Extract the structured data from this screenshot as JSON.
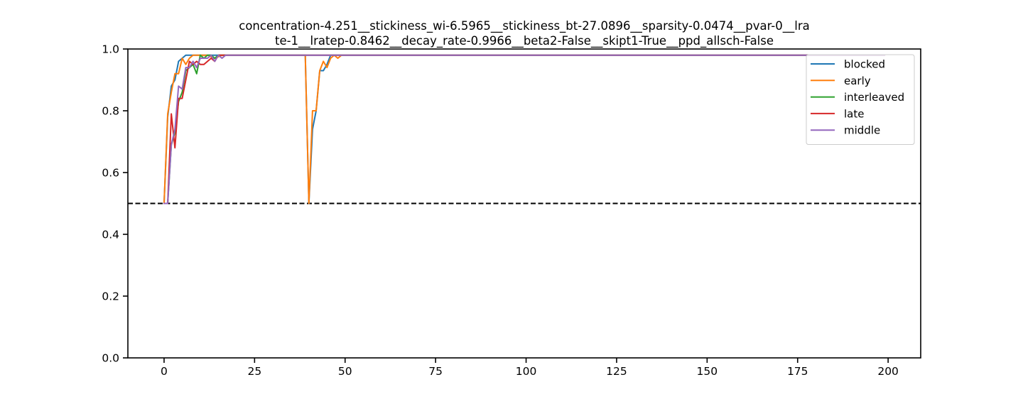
{
  "chart_data": {
    "type": "line",
    "title_lines": [
      "concentration-4.251__stickiness_wi-6.5965__stickiness_bt-27.0896__sparsity-0.0474__pvar-0__lra",
      "te-1__lratep-0.8462__decay_rate-0.9966__beta2-False__skipt1-True__ppd_allsch-False"
    ],
    "xlabel": "",
    "ylabel": "",
    "xlim": [
      -10,
      209
    ],
    "ylim": [
      0.0,
      1.0
    ],
    "xticks": [
      0,
      25,
      50,
      75,
      100,
      125,
      150,
      175,
      200
    ],
    "yticks": [
      0.0,
      0.2,
      0.4,
      0.6,
      0.8,
      1.0
    ],
    "xtick_labels": [
      "0",
      "25",
      "50",
      "75",
      "100",
      "125",
      "150",
      "175",
      "200"
    ],
    "ytick_labels": [
      "0.0",
      "0.2",
      "0.4",
      "0.6",
      "0.8",
      "1.0"
    ],
    "grid": false,
    "legend_position": "top-right",
    "hline": {
      "y": 0.5,
      "style": "dashed",
      "color": "#000000"
    },
    "series": [
      {
        "name": "blocked",
        "color": "#1f77b4",
        "points": [
          [
            0,
            0.5
          ],
          [
            1,
            0.78
          ],
          [
            2,
            0.88
          ],
          [
            3,
            0.9
          ],
          [
            4,
            0.96
          ],
          [
            5,
            0.97
          ],
          [
            6,
            0.98
          ],
          [
            7,
            0.98
          ],
          [
            8,
            0.98
          ],
          [
            9,
            0.98
          ],
          [
            10,
            0.98
          ],
          [
            15,
            0.98
          ],
          [
            20,
            0.98
          ],
          [
            30,
            0.98
          ],
          [
            39,
            0.98
          ],
          [
            40,
            0.5
          ],
          [
            41,
            0.74
          ],
          [
            42,
            0.8
          ],
          [
            43,
            0.93
          ],
          [
            44,
            0.93
          ],
          [
            45,
            0.95
          ],
          [
            46,
            0.98
          ],
          [
            47,
            0.98
          ],
          [
            50,
            0.98
          ],
          [
            100,
            0.98
          ],
          [
            150,
            0.98
          ],
          [
            199,
            0.98
          ]
        ]
      },
      {
        "name": "early",
        "color": "#ff7f0e",
        "points": [
          [
            0,
            0.5
          ],
          [
            1,
            0.79
          ],
          [
            2,
            0.86
          ],
          [
            3,
            0.92
          ],
          [
            4,
            0.92
          ],
          [
            5,
            0.97
          ],
          [
            6,
            0.95
          ],
          [
            7,
            0.97
          ],
          [
            8,
            0.98
          ],
          [
            9,
            0.98
          ],
          [
            10,
            0.98
          ],
          [
            12,
            0.98
          ],
          [
            14,
            0.97
          ],
          [
            16,
            0.98
          ],
          [
            20,
            0.98
          ],
          [
            30,
            0.98
          ],
          [
            39,
            0.98
          ],
          [
            40,
            0.5
          ],
          [
            41,
            0.8
          ],
          [
            42,
            0.8
          ],
          [
            43,
            0.93
          ],
          [
            44,
            0.96
          ],
          [
            45,
            0.94
          ],
          [
            46,
            0.97
          ],
          [
            47,
            0.98
          ],
          [
            48,
            0.97
          ],
          [
            49,
            0.98
          ],
          [
            50,
            0.98
          ],
          [
            100,
            0.98
          ],
          [
            150,
            0.98
          ],
          [
            199,
            0.98
          ]
        ]
      },
      {
        "name": "interleaved",
        "color": "#2ca02c",
        "points": [
          [
            0,
            0.5
          ],
          [
            1,
            0.5
          ],
          [
            2,
            0.69
          ],
          [
            3,
            0.73
          ],
          [
            4,
            0.83
          ],
          [
            5,
            0.86
          ],
          [
            6,
            0.93
          ],
          [
            7,
            0.94
          ],
          [
            8,
            0.95
          ],
          [
            9,
            0.92
          ],
          [
            10,
            0.98
          ],
          [
            11,
            0.97
          ],
          [
            12,
            0.98
          ],
          [
            13,
            0.98
          ],
          [
            14,
            0.97
          ],
          [
            15,
            0.98
          ],
          [
            16,
            0.98
          ],
          [
            17,
            0.98
          ],
          [
            20,
            0.98
          ],
          [
            50,
            0.98
          ],
          [
            100,
            0.98
          ],
          [
            150,
            0.98
          ],
          [
            199,
            0.98
          ]
        ]
      },
      {
        "name": "late",
        "color": "#d62728",
        "points": [
          [
            0,
            0.5
          ],
          [
            1,
            0.5
          ],
          [
            2,
            0.79
          ],
          [
            3,
            0.68
          ],
          [
            4,
            0.84
          ],
          [
            5,
            0.84
          ],
          [
            6,
            0.9
          ],
          [
            7,
            0.96
          ],
          [
            8,
            0.95
          ],
          [
            9,
            0.96
          ],
          [
            10,
            0.95
          ],
          [
            11,
            0.95
          ],
          [
            12,
            0.96
          ],
          [
            13,
            0.97
          ],
          [
            14,
            0.96
          ],
          [
            15,
            0.98
          ],
          [
            16,
            0.98
          ],
          [
            20,
            0.98
          ],
          [
            50,
            0.98
          ],
          [
            100,
            0.98
          ],
          [
            150,
            0.98
          ],
          [
            199,
            0.98
          ]
        ]
      },
      {
        "name": "middle",
        "color": "#9467bd",
        "points": [
          [
            0,
            0.5
          ],
          [
            1,
            0.5
          ],
          [
            2,
            0.69
          ],
          [
            3,
            0.74
          ],
          [
            4,
            0.88
          ],
          [
            5,
            0.87
          ],
          [
            6,
            0.94
          ],
          [
            7,
            0.94
          ],
          [
            8,
            0.96
          ],
          [
            9,
            0.94
          ],
          [
            10,
            0.97
          ],
          [
            11,
            0.97
          ],
          [
            12,
            0.97
          ],
          [
            13,
            0.98
          ],
          [
            14,
            0.96
          ],
          [
            15,
            0.98
          ],
          [
            16,
            0.97
          ],
          [
            17,
            0.98
          ],
          [
            20,
            0.98
          ],
          [
            50,
            0.98
          ],
          [
            100,
            0.98
          ],
          [
            150,
            0.98
          ],
          [
            199,
            0.98
          ]
        ]
      }
    ]
  }
}
